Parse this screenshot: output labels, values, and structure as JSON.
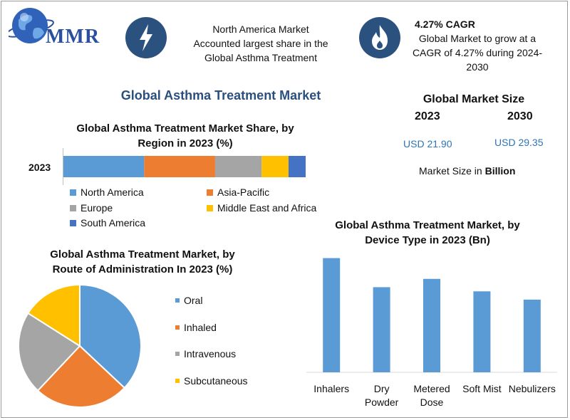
{
  "brand": {
    "logo_text": "MMR"
  },
  "header": {
    "box1_lines": [
      "North America Market",
      "Accounted largest share in the",
      "Global Asthma Treatment"
    ],
    "box2_title": "4.27% CAGR",
    "box2_lines": [
      "Global Market to grow at a",
      "CAGR of 4.27% during 2024-",
      "2030"
    ],
    "icon1": "lightning-bolt-icon",
    "icon2": "flame-icon"
  },
  "main_title": "Global Asthma Treatment Market",
  "market_size": {
    "title": "Global Market Size",
    "year1": "2023",
    "year2": "2030",
    "value1": "USD 21.90",
    "value2": "USD 29.35",
    "note_prefix": "Market Size in ",
    "note_bold": "Billion"
  },
  "colors": {
    "blue": "#5b9bd5",
    "orange": "#ed7d31",
    "gray": "#a5a5a5",
    "yellow": "#ffc000",
    "darkblue": "#4472c4",
    "accent": "#2b4f7e"
  },
  "chart_data": [
    {
      "type": "bar",
      "orientation": "horizontal-stacked",
      "title_lines": [
        "Global Asthma Treatment Market Share, by",
        "Region in 2023 (%)"
      ],
      "categories": [
        "2023"
      ],
      "series": [
        {
          "name": "North America",
          "values": [
            33
          ],
          "color": "#5b9bd5"
        },
        {
          "name": "Asia-Pacific",
          "values": [
            29
          ],
          "color": "#ed7d31"
        },
        {
          "name": "Europe",
          "values": [
            19
          ],
          "color": "#a5a5a5"
        },
        {
          "name": "Middle East and Africa",
          "values": [
            11
          ],
          "color": "#ffc000"
        },
        {
          "name": "South America",
          "values": [
            7
          ],
          "color": "#4472c4"
        }
      ]
    },
    {
      "type": "pie",
      "title_lines": [
        "Global Asthma Treatment Market, by",
        "Route of Administration In 2023 (%)"
      ],
      "labels": [
        "Oral",
        "Inhaled",
        "Intravenous",
        "Subcutaneous"
      ],
      "values": [
        37,
        25,
        22,
        16
      ],
      "colors": [
        "#5b9bd5",
        "#ed7d31",
        "#a5a5a5",
        "#ffc000"
      ]
    },
    {
      "type": "bar",
      "title_lines": [
        "Global Asthma Treatment Market, by",
        "Device Type in 2023 (Bn)"
      ],
      "categories": [
        "Inhalers",
        "Dry Powder",
        "Metered Dose",
        "Soft Mist",
        "Nebulizers"
      ],
      "category_lines": [
        [
          "Inhalers"
        ],
        [
          "Dry",
          "Powder"
        ],
        [
          "Metered",
          "Dose"
        ],
        [
          "Soft Mist"
        ],
        [
          "Nebulizers"
        ]
      ],
      "values": [
        5.5,
        4.1,
        4.5,
        3.9,
        3.5
      ],
      "ylim": [
        0,
        6
      ],
      "color": "#5b9bd5"
    }
  ]
}
